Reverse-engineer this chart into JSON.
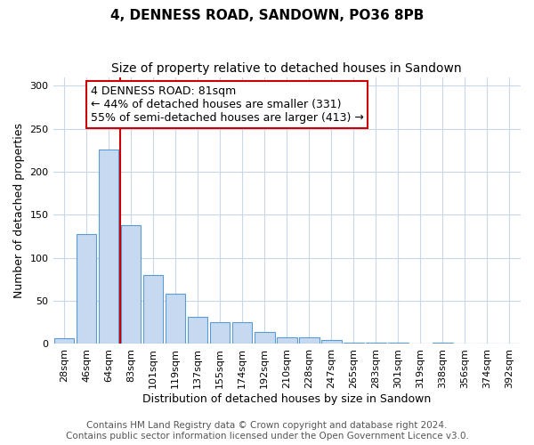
{
  "title": "4, DENNESS ROAD, SANDOWN, PO36 8PB",
  "subtitle": "Size of property relative to detached houses in Sandown",
  "xlabel": "Distribution of detached houses by size in Sandown",
  "ylabel": "Number of detached properties",
  "bar_labels": [
    "28sqm",
    "46sqm",
    "64sqm",
    "83sqm",
    "101sqm",
    "119sqm",
    "137sqm",
    "155sqm",
    "174sqm",
    "192sqm",
    "210sqm",
    "228sqm",
    "247sqm",
    "265sqm",
    "283sqm",
    "301sqm",
    "319sqm",
    "338sqm",
    "356sqm",
    "374sqm",
    "392sqm"
  ],
  "bar_values": [
    7,
    128,
    226,
    138,
    80,
    58,
    31,
    25,
    25,
    14,
    8,
    8,
    5,
    2,
    1,
    1,
    0,
    1,
    0,
    0,
    0
  ],
  "bar_color": "#c6d9f0",
  "bar_edge_color": "#5b9bd5",
  "vline_color": "#cc0000",
  "annotation_text": "4 DENNESS ROAD: 81sqm\n← 44% of detached houses are smaller (331)\n55% of semi-detached houses are larger (413) →",
  "annotation_box_color": "#ffffff",
  "annotation_box_edge": "#cc0000",
  "ylim": [
    0,
    310
  ],
  "yticks": [
    0,
    50,
    100,
    150,
    200,
    250,
    300
  ],
  "footer_line1": "Contains HM Land Registry data © Crown copyright and database right 2024.",
  "footer_line2": "Contains public sector information licensed under the Open Government Licence v3.0.",
  "bg_color": "#ffffff",
  "grid_color": "#c8d8e8",
  "title_fontsize": 11,
  "subtitle_fontsize": 10,
  "axis_label_fontsize": 9,
  "tick_fontsize": 8,
  "annotation_fontsize": 9,
  "footer_fontsize": 7.5
}
